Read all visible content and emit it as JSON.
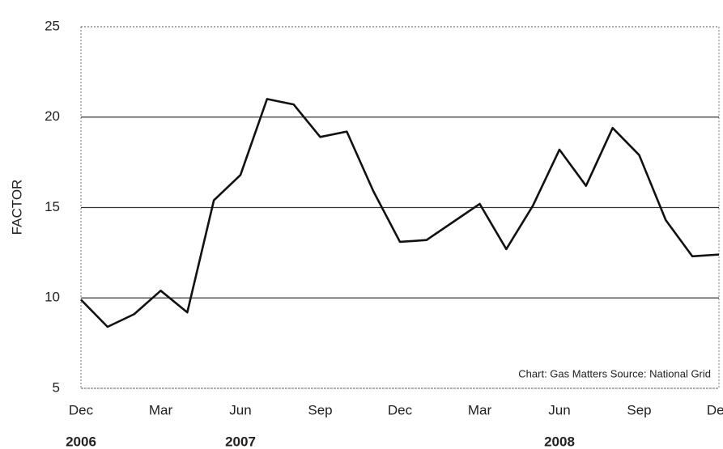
{
  "chart_data": {
    "type": "line",
    "y_label": "FACTOR",
    "annotation": "Chart: Gas Matters Source: National Grid",
    "categories": [
      "Dec",
      null,
      null,
      "Mar",
      null,
      null,
      "Jun",
      null,
      null,
      "Sep",
      null,
      null,
      "Dec",
      null,
      null,
      "Mar",
      null,
      null,
      "Jun",
      null,
      null,
      "Sep",
      null,
      null,
      "Dec"
    ],
    "years": [
      "2006",
      null,
      null,
      null,
      null,
      null,
      "2007",
      null,
      null,
      null,
      null,
      null,
      null,
      null,
      null,
      null,
      null,
      null,
      "2008",
      null,
      null,
      null,
      null,
      null,
      null
    ],
    "values": [
      9.9,
      8.4,
      9.1,
      10.4,
      9.2,
      15.4,
      16.8,
      21.0,
      20.7,
      18.9,
      19.2,
      15.9,
      13.1,
      13.2,
      14.2,
      15.2,
      12.7,
      15.1,
      18.2,
      16.2,
      19.4,
      17.9,
      14.3,
      12.3,
      12.4
    ],
    "color": "#111111",
    "ylim": [
      5,
      25
    ],
    "yticks": [
      5,
      10,
      15,
      20,
      25
    ],
    "grid": true
  }
}
